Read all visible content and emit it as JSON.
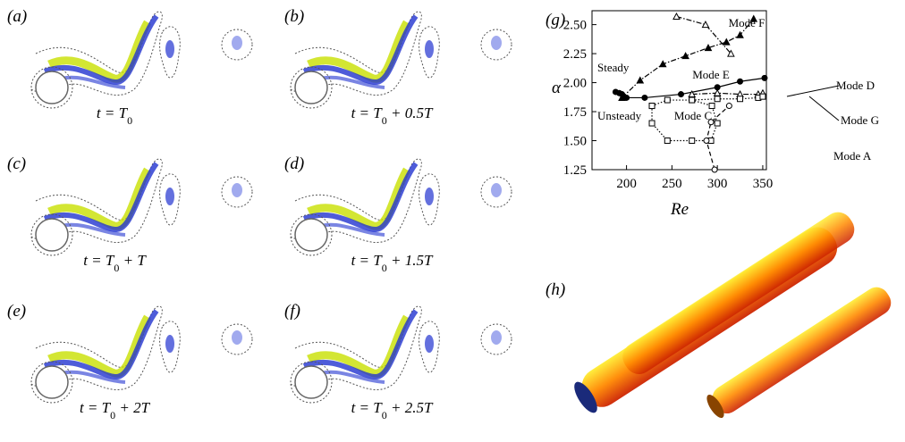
{
  "panels": [
    {
      "label": "(a)",
      "caption": [
        "t = T",
        "0",
        ""
      ]
    },
    {
      "label": "(b)",
      "caption": [
        "t = T",
        "0",
        " + 0.5T"
      ]
    },
    {
      "label": "(c)",
      "caption": [
        "t = T",
        "0",
        " + T"
      ]
    },
    {
      "label": "(d)",
      "caption": [
        "t = T",
        "0",
        " + 1.5T"
      ]
    },
    {
      "label": "(e)",
      "caption": [
        "t = T",
        "0",
        " + 2T"
      ]
    },
    {
      "label": "(f)",
      "caption": [
        "t = T",
        "0",
        " + 2.5T"
      ]
    }
  ],
  "chart_label": "(g)",
  "render_label": "(h)",
  "chart_data": {
    "type": "line",
    "x_label": "Re",
    "y_label": "α",
    "xlim": [
      162,
      354
    ],
    "ylim": [
      1.25,
      2.62
    ],
    "xticks": [
      200,
      250,
      300,
      350
    ],
    "yticks": [
      {
        "value": 1.25,
        "label": "1.25"
      },
      {
        "value": 1.5,
        "label": "1.50"
      },
      {
        "value": 1.75,
        "label": "1.75"
      },
      {
        "value": 2.0,
        "label": "2.00"
      },
      {
        "value": 2.25,
        "label": "2.25"
      },
      {
        "value": 2.5,
        "label": "2.50"
      }
    ],
    "annotations": [
      "Mode F",
      "Mode E",
      "Steady",
      "Mode D",
      "Unsteady",
      "Mode C",
      "Mode G",
      "Mode A"
    ],
    "series": [
      {
        "x": [
          188,
          192,
          195,
          200,
          220,
          260,
          300,
          325,
          352
        ],
        "values": [
          1.92,
          1.91,
          1.9,
          1.87,
          1.87,
          1.9,
          1.96,
          2.01,
          2.04
        ],
        "line": "solid",
        "marker": "filled-circle",
        "color": "#000000"
      },
      {
        "x": [
          195,
          215,
          240,
          265,
          290,
          310,
          325,
          340
        ],
        "values": [
          1.87,
          2.02,
          2.16,
          2.23,
          2.3,
          2.35,
          2.41,
          2.55
        ],
        "line": "dashdot",
        "marker": "filled-triangle",
        "color": "#000000"
      },
      {
        "x": [
          255,
          287,
          315
        ],
        "values": [
          2.57,
          2.5,
          2.25
        ],
        "line": "dashdot",
        "marker": "open-triangle",
        "color": "#000000"
      },
      {
        "x": [
          228,
          245,
          272,
          294,
          300,
          293,
          272,
          245,
          228,
          228
        ],
        "values": [
          1.8,
          1.85,
          1.85,
          1.8,
          1.65,
          1.5,
          1.5,
          1.5,
          1.65,
          1.8
        ],
        "line": "dotted",
        "marker": "open-square",
        "color": "#000000"
      },
      {
        "x": [
          297,
          288,
          293,
          313
        ],
        "values": [
          1.25,
          1.5,
          1.66,
          1.8
        ],
        "line": "dashed",
        "marker": "open-circle",
        "color": "#000000"
      },
      {
        "x": [
          272,
          300,
          325,
          345,
          350
        ],
        "values": [
          1.9,
          1.91,
          1.9,
          1.9,
          1.91
        ],
        "line": "dashdot",
        "marker": "open-triangle",
        "color": "#000000"
      },
      {
        "x": [
          272,
          300,
          325,
          345,
          350
        ],
        "values": [
          1.85,
          1.86,
          1.86,
          1.87,
          1.88
        ],
        "line": "dotted",
        "marker": "open-square",
        "color": "#000000"
      }
    ]
  }
}
